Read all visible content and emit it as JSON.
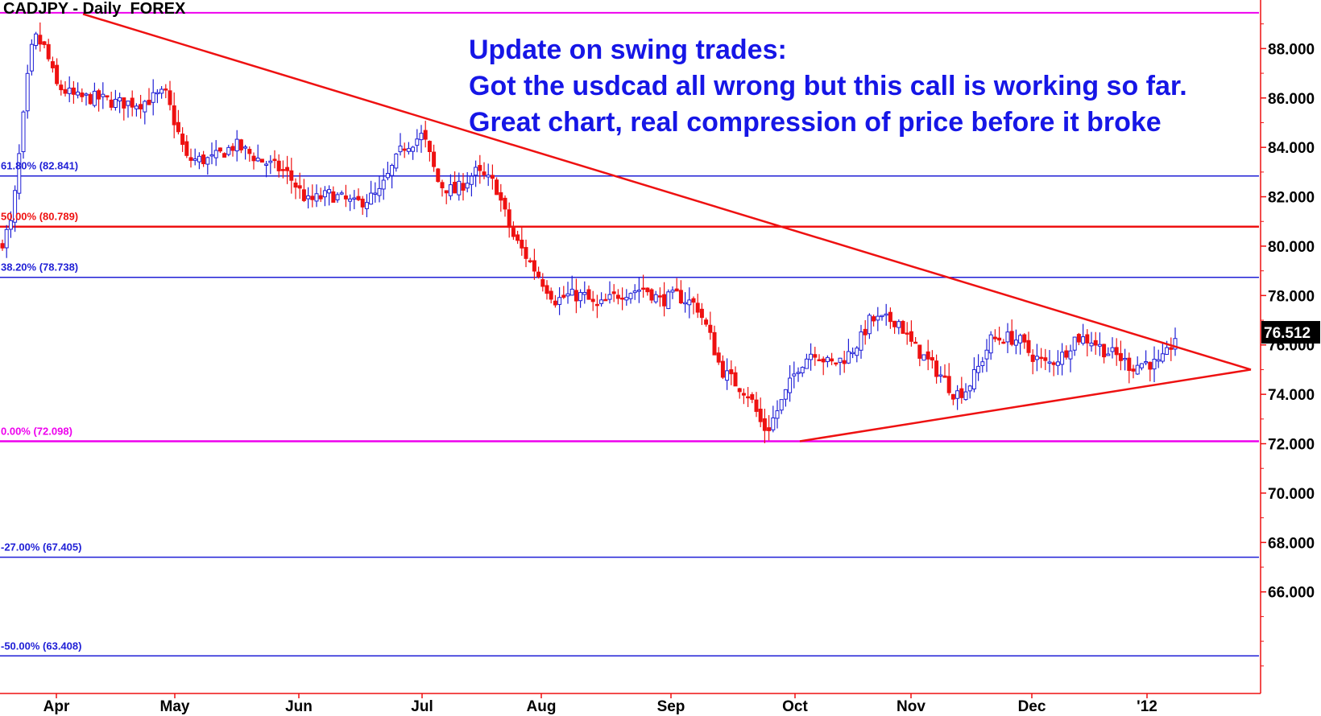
{
  "header": {
    "title": "CADJPY - Daily  FOREX"
  },
  "annotation": {
    "lines": [
      "Update on swing trades:",
      "Got the usdcad all wrong but this call is working so far.",
      "Great chart, real compression of price before it broke"
    ]
  },
  "colors": {
    "up_candle": "#1f1fd6",
    "down_candle": "#ee1111",
    "trendline": "#ee1111",
    "magenta": "#ee00ee",
    "fib_blue": "#1f1fd6",
    "fib_red": "#ee1111",
    "axis": "#ee1111",
    "annotation": "#1616e6"
  },
  "chart_data": {
    "type": "candlestick",
    "title": "CADJPY - Daily  FOREX",
    "ylim": [
      62.0,
      89.7
    ],
    "y_ticks": [
      "88.000",
      "86.000",
      "84.000",
      "82.000",
      "80.000",
      "78.000",
      "76.000",
      "74.000",
      "72.000",
      "70.000",
      "68.000",
      "66.000"
    ],
    "x_labels": [
      "Apr",
      "May",
      "Jun",
      "Jul",
      "Aug",
      "Sep",
      "Oct",
      "Nov",
      "Dec",
      "'12"
    ],
    "last_price": "76.512",
    "fib_levels": [
      {
        "label": "61.80% (82.841)",
        "value": 82.841,
        "color": "blue"
      },
      {
        "label": "50.00% (80.789)",
        "value": 80.789,
        "color": "red"
      },
      {
        "label": "38.20% (78.738)",
        "value": 78.738,
        "color": "blue"
      },
      {
        "label": "0.00% (72.098)",
        "value": 72.098,
        "color": "magenta"
      },
      {
        "label": "-27.00% (67.405)",
        "value": 67.405,
        "color": "blue"
      },
      {
        "label": "-50.00% (63.408)",
        "value": 63.408,
        "color": "blue"
      }
    ],
    "top_level": 89.45,
    "trendlines": [
      {
        "name": "resistance",
        "from": [
          "Apr",
          89.4
        ],
        "to": [
          "Jan",
          75.0
        ]
      },
      {
        "name": "support",
        "from": [
          "Oct",
          72.1
        ],
        "to": [
          "Jan",
          75.0
        ]
      }
    ],
    "anchors": [
      [
        0,
        80.0
      ],
      [
        15,
        81.0
      ],
      [
        25,
        84.0
      ],
      [
        35,
        87.0
      ],
      [
        42,
        88.5
      ],
      [
        56,
        88.0
      ],
      [
        70,
        86.5
      ],
      [
        95,
        86.0
      ],
      [
        120,
        86.0
      ],
      [
        145,
        85.8
      ],
      [
        175,
        85.8
      ],
      [
        205,
        86.2
      ],
      [
        232,
        83.5
      ],
      [
        262,
        83.5
      ],
      [
        292,
        84.1
      ],
      [
        322,
        83.5
      ],
      [
        355,
        83.0
      ],
      [
        382,
        81.8
      ],
      [
        410,
        82.1
      ],
      [
        440,
        81.7
      ],
      [
        470,
        82.1
      ],
      [
        500,
        84.0
      ],
      [
        525,
        84.5
      ],
      [
        545,
        82.5
      ],
      [
        565,
        82.2
      ],
      [
        590,
        83.0
      ],
      [
        615,
        82.5
      ],
      [
        635,
        80.5
      ],
      [
        655,
        79.5
      ],
      [
        675,
        78.5
      ],
      [
        690,
        77.8
      ],
      [
        705,
        78.0
      ],
      [
        725,
        78.0
      ],
      [
        740,
        77.5
      ],
      [
        770,
        78.1
      ],
      [
        800,
        78.3
      ],
      [
        820,
        77.8
      ],
      [
        840,
        78.0
      ],
      [
        865,
        77.6
      ],
      [
        880,
        76.5
      ],
      [
        895,
        75.0
      ],
      [
        915,
        74.4
      ],
      [
        930,
        74.0
      ],
      [
        945,
        72.8
      ],
      [
        952,
        72.5
      ],
      [
        972,
        73.8
      ],
      [
        990,
        75.1
      ],
      [
        1010,
        75.8
      ],
      [
        1030,
        75.2
      ],
      [
        1050,
        75.5
      ],
      [
        1068,
        76.2
      ],
      [
        1080,
        77.0
      ],
      [
        1095,
        77.0
      ],
      [
        1115,
        77.0
      ],
      [
        1130,
        76.1
      ],
      [
        1150,
        75.4
      ],
      [
        1170,
        74.7
      ],
      [
        1185,
        74.0
      ],
      [
        1200,
        74.2
      ],
      [
        1215,
        75.1
      ],
      [
        1230,
        76.2
      ],
      [
        1250,
        76.3
      ],
      [
        1265,
        76.2
      ],
      [
        1280,
        75.6
      ],
      [
        1300,
        75.2
      ],
      [
        1320,
        75.6
      ],
      [
        1335,
        76.3
      ],
      [
        1355,
        76.2
      ],
      [
        1370,
        75.8
      ],
      [
        1390,
        75.5
      ],
      [
        1405,
        75.1
      ],
      [
        1420,
        75.3
      ],
      [
        1440,
        75.2
      ],
      [
        1450,
        75.7
      ],
      [
        1460,
        76.4
      ]
    ]
  }
}
